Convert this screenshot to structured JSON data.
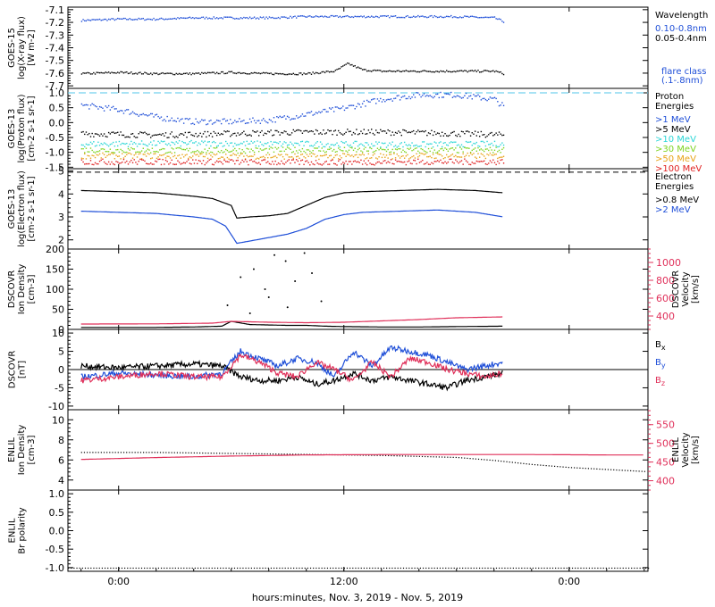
{
  "time_axis": {
    "xlabel": "hours:minutes, Nov.  3, 2019 - Nov.  5, 2019",
    "ticks": [
      {
        "hours": 0,
        "label": "0:00"
      },
      {
        "hours": 12,
        "label": "12:00"
      },
      {
        "hours": 24,
        "label": "0:00"
      }
    ],
    "range_hours": [
      -2.7,
      28.2
    ]
  },
  "chart_data": [
    {
      "type": "scatter",
      "ylabel_lines": [
        "GOES-15",
        "log(X-ray flux)",
        "[W m-2]"
      ],
      "ylim": [
        -7.72,
        -7.08
      ],
      "yticks": [
        -7.7,
        -7.6,
        -7.5,
        -7.4,
        -7.3,
        -7.2,
        -7.1
      ],
      "yticklabels": [
        "-7.7",
        "-7.6",
        "-7.5",
        "-7.4",
        "-7.3",
        "-7.2",
        "-7.1"
      ],
      "legend_title": [
        "Wavelength"
      ],
      "legend": [
        {
          "text": "0.10-0.8nm",
          "color": "#1f4fd8"
        },
        {
          "text": "0.05-0.4nm",
          "color": "#000000"
        }
      ],
      "legend_bottom": [
        {
          "text": "flare class",
          "color": "#1f4fd8"
        },
        {
          "text": "(.1-.8nm)",
          "color": "#1f4fd8"
        }
      ],
      "series": [
        {
          "name": "0.10-0.8nm",
          "color": "#1f4fd8",
          "x": [
            -2,
            0,
            2,
            4,
            6,
            8,
            10,
            12,
            14,
            16,
            18,
            20,
            20.5
          ],
          "y": [
            -7.18,
            -7.17,
            -7.17,
            -7.16,
            -7.16,
            -7.16,
            -7.15,
            -7.15,
            -7.15,
            -7.15,
            -7.15,
            -7.16,
            -7.19
          ]
        },
        {
          "name": "0.05-0.4nm",
          "color": "#000000",
          "x": [
            -2,
            0,
            2,
            4,
            6,
            8,
            10,
            11.5,
            12.2,
            13,
            14,
            16,
            18,
            20,
            20.5
          ],
          "y": [
            -7.6,
            -7.59,
            -7.6,
            -7.6,
            -7.59,
            -7.6,
            -7.6,
            -7.58,
            -7.52,
            -7.57,
            -7.58,
            -7.58,
            -7.58,
            -7.58,
            -7.6
          ]
        }
      ]
    },
    {
      "type": "scatter",
      "ylabel_lines": [
        "GOES-13",
        "log(Proton flux)",
        "[cm-2 s-1 sr-1]"
      ],
      "ylim": [
        -1.55,
        1.15
      ],
      "yticks": [
        -1.5,
        -1.0,
        -0.5,
        0.0,
        0.5,
        1.0
      ],
      "yticklabels": [
        "-1.5",
        "-1.0",
        "-0.5",
        "0.0",
        "0.5",
        "1.0"
      ],
      "hline": {
        "y": 1.0,
        "color": "#4fc6e8"
      },
      "legend_title": [
        "Proton",
        "Energies"
      ],
      "legend": [
        {
          "text": ">1 MeV",
          "color": "#1f4fd8"
        },
        {
          "text": ">5 MeV",
          "color": "#000000"
        },
        {
          "text": ">10 MeV",
          "color": "#2ad6d6"
        },
        {
          "text": ">30 MeV",
          "color": "#7ed321"
        },
        {
          "text": ">50 MeV",
          "color": "#e8a317"
        },
        {
          "text": ">100 MeV",
          "color": "#e02020"
        }
      ],
      "series": [
        {
          "name": ">1 MeV",
          "color": "#1f4fd8",
          "x": [
            -2,
            0,
            2,
            4,
            6,
            8,
            10,
            12,
            14,
            16,
            18,
            20,
            20.5
          ],
          "y": [
            0.6,
            0.45,
            0.2,
            0.05,
            0.05,
            0.1,
            0.3,
            0.5,
            0.8,
            0.95,
            0.95,
            0.8,
            0.55
          ]
        },
        {
          "name": ">5 MeV",
          "color": "#000000",
          "x": [
            -2,
            2,
            6,
            10,
            14,
            18,
            20.5
          ],
          "y": [
            -0.35,
            -0.4,
            -0.35,
            -0.3,
            -0.3,
            -0.35,
            -0.4
          ]
        },
        {
          "name": ">10 MeV",
          "color": "#2ad6d6",
          "x": [
            -2,
            4,
            10,
            16,
            20.5
          ],
          "y": [
            -0.7,
            -0.68,
            -0.7,
            -0.72,
            -0.7
          ]
        },
        {
          "name": ">30 MeV",
          "color": "#7ed321",
          "x": [
            -2,
            4,
            10,
            16,
            20.5
          ],
          "y": [
            -0.9,
            -0.92,
            -0.9,
            -0.92,
            -0.9
          ]
        },
        {
          "name": ">50 MeV",
          "color": "#e8a317",
          "x": [
            -2,
            4,
            10,
            16,
            20.5
          ],
          "y": [
            -1.1,
            -1.1,
            -1.12,
            -1.1,
            -1.1
          ]
        },
        {
          "name": ">100 MeV",
          "color": "#e02020",
          "x": [
            -2,
            4,
            10,
            16,
            20.5
          ],
          "y": [
            -1.3,
            -1.3,
            -1.32,
            -1.3,
            -1.3
          ]
        }
      ]
    },
    {
      "type": "line",
      "ylabel_lines": [
        "GOES-13",
        "log(Electron flux)",
        "[cm-2 s-1 sr-1]"
      ],
      "ylim": [
        1.6,
        5.1
      ],
      "yticks": [
        2,
        3,
        4,
        5
      ],
      "yticklabels": [
        "2",
        "3",
        "4",
        "5"
      ],
      "hline": {
        "y": 4.95,
        "color": "#000000",
        "dashed": true
      },
      "legend_title": [
        "Electron",
        "Energies"
      ],
      "legend": [
        {
          "text": ">0.8 MeV",
          "color": "#000000"
        },
        {
          "text": ">2 MeV",
          "color": "#1f4fd8"
        }
      ],
      "series": [
        {
          "name": ">0.8 MeV",
          "color": "#000000",
          "x": [
            -2,
            0,
            2,
            4,
            5,
            6,
            6.3,
            7,
            8,
            9,
            10,
            11,
            12,
            13,
            15,
            17,
            19,
            20.5
          ],
          "y": [
            4.15,
            4.1,
            4.05,
            3.9,
            3.8,
            3.5,
            2.95,
            3.0,
            3.05,
            3.15,
            3.5,
            3.85,
            4.05,
            4.1,
            4.15,
            4.2,
            4.15,
            4.05
          ]
        },
        {
          "name": ">2 MeV",
          "color": "#1f4fd8",
          "x": [
            -2,
            0,
            2,
            4,
            5,
            5.7,
            6.3,
            7,
            8,
            9,
            10,
            11,
            12,
            13,
            15,
            17,
            19,
            20.5
          ],
          "y": [
            3.25,
            3.2,
            3.15,
            3.0,
            2.9,
            2.6,
            1.85,
            1.95,
            2.1,
            2.25,
            2.5,
            2.9,
            3.1,
            3.2,
            3.25,
            3.3,
            3.2,
            3.0
          ]
        }
      ]
    },
    {
      "type": "line",
      "ylabel_lines": [
        "DSCOVR",
        "Ion Density",
        "[cm-3]"
      ],
      "ylim": [
        0,
        200
      ],
      "yticks": [
        0,
        50,
        100,
        150,
        200
      ],
      "yticklabels": [
        "0",
        "50",
        "100",
        "150",
        "200"
      ],
      "y2label_lines": [
        "DSCOVR",
        "Velocity",
        "[km/s]"
      ],
      "y2lim": [
        250,
        1150
      ],
      "y2ticks": [
        400,
        600,
        800,
        1000
      ],
      "y2ticklabels": [
        "400",
        "600",
        "800",
        "1000"
      ],
      "y2color": "#e0305a",
      "series": [
        {
          "name": "Ion Density",
          "color": "#000000",
          "axis": "y",
          "x": [
            -2,
            2,
            4,
            5.5,
            6,
            7,
            9,
            10,
            11,
            12,
            14,
            16,
            18,
            20.5
          ],
          "y": [
            5,
            5,
            6,
            8,
            20,
            12,
            10,
            10,
            8,
            7,
            6,
            6,
            7,
            8
          ]
        },
        {
          "name": "Velocity",
          "color": "#e0305a",
          "axis": "y2",
          "x": [
            -2,
            2,
            5,
            6,
            8,
            10,
            12,
            14,
            16,
            18,
            20.5
          ],
          "y": [
            310,
            312,
            320,
            340,
            330,
            325,
            330,
            345,
            360,
            380,
            390
          ]
        },
        {
          "name": "Density spikes",
          "color": "#000000",
          "axis": "y",
          "style": "points",
          "x": [
            5.8,
            6.5,
            7.2,
            7.8,
            8.3,
            8.9,
            9.4,
            9.9,
            10.3,
            10.8,
            7.0,
            8.0,
            9.0
          ],
          "y": [
            60,
            130,
            150,
            100,
            185,
            170,
            120,
            190,
            140,
            70,
            40,
            80,
            55
          ]
        }
      ]
    },
    {
      "type": "line",
      "ylabel_lines": [
        "DSCOVR",
        "[nT]"
      ],
      "ylim": [
        -11,
        11
      ],
      "yticks": [
        -10,
        -5,
        0,
        5,
        10
      ],
      "yticklabels": [
        "-10",
        "-5",
        "0",
        "5",
        "10"
      ],
      "legend": [
        {
          "text": "Bx",
          "color": "#000000",
          "sub": "x"
        },
        {
          "text": "By",
          "color": "#1f4fd8",
          "sub": "y"
        },
        {
          "text": "Bz",
          "color": "#e0305a",
          "sub": "z"
        }
      ],
      "series": [
        {
          "name": "Bx",
          "color": "#000000",
          "x": [
            -2,
            0,
            2,
            4,
            5.5,
            6.5,
            7.5,
            8.5,
            9.5,
            10.5,
            11.5,
            12.5,
            13.5,
            14.5,
            15.5,
            16.5,
            17.5,
            18.5,
            19.5,
            20.5
          ],
          "y": [
            1,
            0.5,
            1,
            1.5,
            1,
            -2,
            -3,
            -3,
            -2,
            -4,
            -3,
            -1,
            -3,
            -2,
            -3,
            -4,
            -5,
            -3,
            -2,
            -1
          ]
        },
        {
          "name": "By",
          "color": "#1f4fd8",
          "x": [
            -2,
            0,
            2,
            4,
            5.5,
            6.5,
            7.5,
            8.5,
            9.5,
            10.5,
            11.5,
            12.5,
            13.5,
            14.5,
            15.5,
            16.5,
            17.5,
            18.5,
            19.5,
            20.5
          ],
          "y": [
            -2,
            -1,
            -1.5,
            -2,
            -1,
            5,
            3,
            1,
            3,
            2,
            -2,
            5,
            1,
            6,
            5,
            4,
            2,
            0,
            1,
            2
          ]
        },
        {
          "name": "Bz",
          "color": "#e0305a",
          "x": [
            -2,
            0,
            2,
            4,
            5.5,
            6.5,
            7.5,
            8.5,
            9.5,
            10.5,
            11.5,
            12.5,
            13.5,
            14.5,
            15.5,
            16.5,
            17.5,
            18.5,
            19.5,
            20.5
          ],
          "y": [
            -3,
            -2,
            -1,
            -2,
            -2,
            4,
            2,
            -1,
            -2,
            2,
            0,
            -3,
            2,
            -2,
            3,
            2,
            0,
            -1,
            -2,
            -1
          ]
        }
      ]
    },
    {
      "type": "line",
      "ylabel_lines": [
        "ENLIL",
        "Ion Density",
        "[cm-3]"
      ],
      "ylim": [
        3,
        11
      ],
      "yticks": [
        4,
        6,
        8,
        10
      ],
      "yticklabels": [
        "4",
        "6",
        "8",
        "10"
      ],
      "y2label_lines": [
        "ENLIL",
        "Velocity",
        "[km/s]"
      ],
      "y2lim": [
        375,
        590
      ],
      "y2ticks": [
        400,
        450,
        500,
        550
      ],
      "y2ticklabels": [
        "400",
        "450",
        "500",
        "550"
      ],
      "y2color": "#e0305a",
      "series": [
        {
          "name": "Ion Density",
          "color": "#000000",
          "axis": "y",
          "style": "dotted",
          "x": [
            -2,
            2,
            6,
            10,
            14,
            18,
            20,
            22,
            24,
            26,
            28
          ],
          "y": [
            6.8,
            6.8,
            6.7,
            6.6,
            6.5,
            6.3,
            6.0,
            5.6,
            5.3,
            5.1,
            4.9
          ]
        },
        {
          "name": "Velocity",
          "color": "#e0305a",
          "axis": "y2",
          "x": [
            -2,
            2,
            6,
            10,
            14,
            18,
            22,
            26,
            28
          ],
          "y": [
            457,
            462,
            466,
            469,
            470,
            470,
            470,
            469,
            469
          ]
        }
      ]
    },
    {
      "type": "line",
      "ylabel_lines": [
        "ENLIL",
        "Br polarity"
      ],
      "ylim": [
        -1.1,
        1.1
      ],
      "yticks": [
        -1.0,
        -0.5,
        0.0,
        0.5,
        1.0
      ],
      "yticklabels": [
        "-1.0",
        "-0.5",
        "0.0",
        "0.5",
        "1.0"
      ],
      "series": [
        {
          "name": "Br polarity",
          "color": "#000000",
          "style": "dotted",
          "x": [
            -2.7,
            28.2
          ],
          "y": [
            -1.0,
            -1.0
          ]
        }
      ]
    }
  ]
}
